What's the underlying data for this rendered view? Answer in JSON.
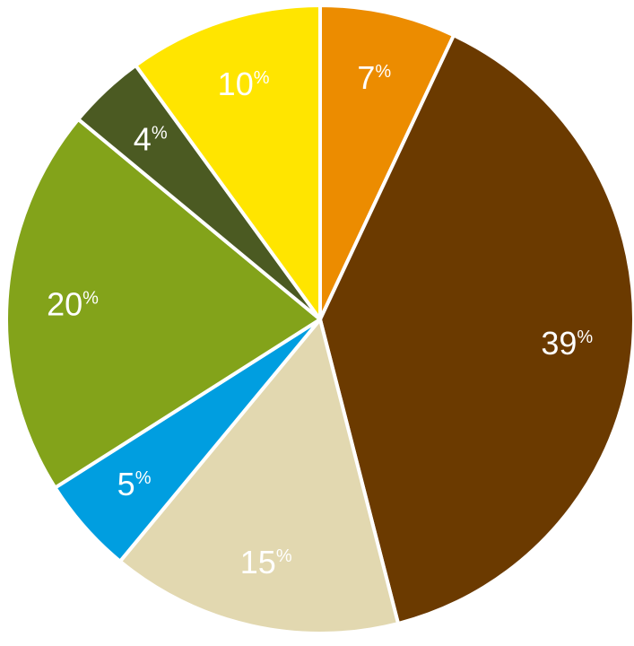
{
  "chart_data": {
    "type": "pie",
    "start_angle_deg": 0,
    "direction": "clockwise",
    "slices": [
      {
        "value": 7,
        "label": "7",
        "color": "#EC8C00"
      },
      {
        "value": 39,
        "label": "39",
        "color": "#6B3A00"
      },
      {
        "value": 15,
        "label": "15",
        "color": "#E2D8B0"
      },
      {
        "value": 5,
        "label": "5",
        "color": "#009EE0"
      },
      {
        "value": 20,
        "label": "20",
        "color": "#83A31A"
      },
      {
        "value": 4,
        "label": "4",
        "color": "#4B5A22"
      },
      {
        "value": 10,
        "label": "10",
        "color": "#FFE500"
      }
    ],
    "percent_symbol": "%"
  }
}
